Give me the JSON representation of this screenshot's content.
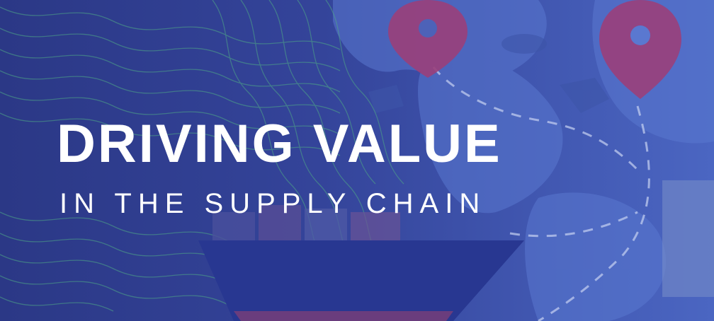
{
  "banner": {
    "title": "DRIVING VALUE",
    "subtitle": "IN THE SUPPLY CHAIN"
  },
  "colors": {
    "background": "#2f3d8e",
    "map_blue": "#4a67c4",
    "pin": "#9a3f7a",
    "contour_lines": "#4fa886",
    "ship": "#283791",
    "text": "#ffffff"
  },
  "icons": [
    "location-pin-icon",
    "cargo-ship-icon",
    "world-map-icon",
    "contour-lines-pattern"
  ]
}
